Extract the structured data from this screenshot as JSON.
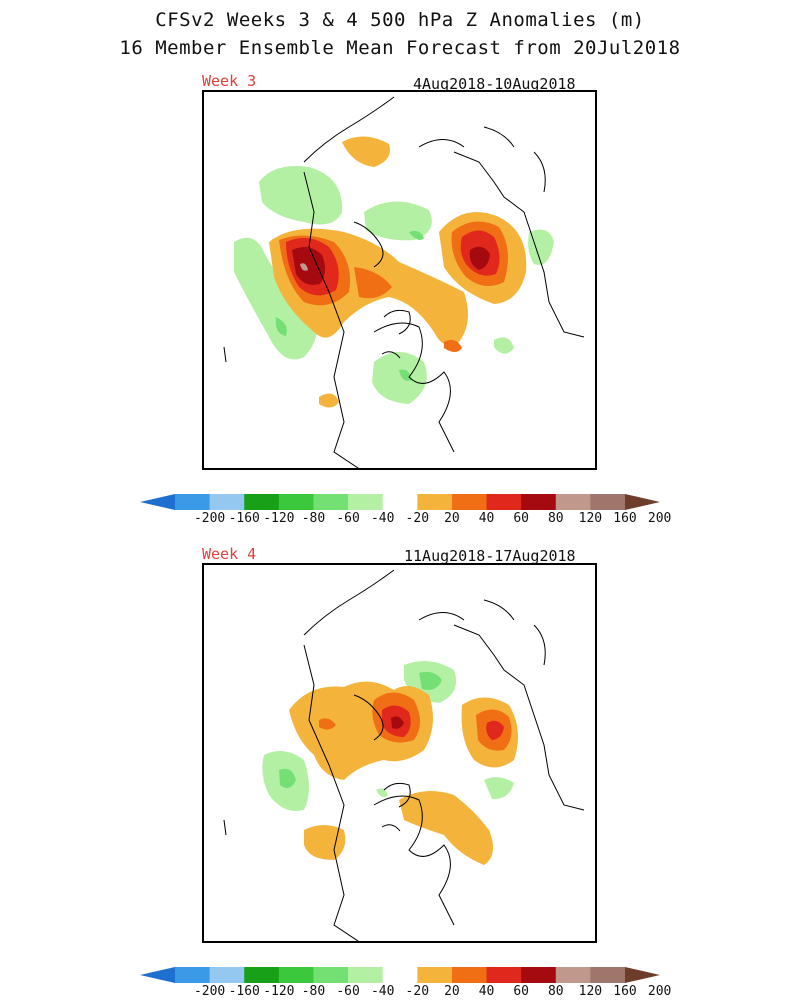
{
  "title": {
    "line1": "CFSv2 Weeks 3 & 4 500 hPa Z Anomalies (m)",
    "line2": "16 Member Ensemble Mean Forecast from 20Jul2018"
  },
  "panels": [
    {
      "week_label": "Week 3",
      "date_range": "4Aug2018-10Aug2018"
    },
    {
      "week_label": "Week 4",
      "date_range": "11Aug2018-17Aug2018"
    }
  ],
  "colorbar": {
    "colors": [
      "#1e6fd0",
      "#3a9ae8",
      "#94c8f0",
      "#18a018",
      "#3cc83c",
      "#74e074",
      "#b4f0a4",
      "#ffffff",
      "#f4b43c",
      "#f06e14",
      "#e0281c",
      "#a50a10",
      "#c0988c",
      "#a0766c",
      "#6e3c2a"
    ],
    "labels": [
      "-200",
      "-160",
      "-120",
      "-80",
      "-60",
      "-40",
      "-20",
      "20",
      "40",
      "60",
      "80",
      "120",
      "160",
      "200"
    ]
  }
}
